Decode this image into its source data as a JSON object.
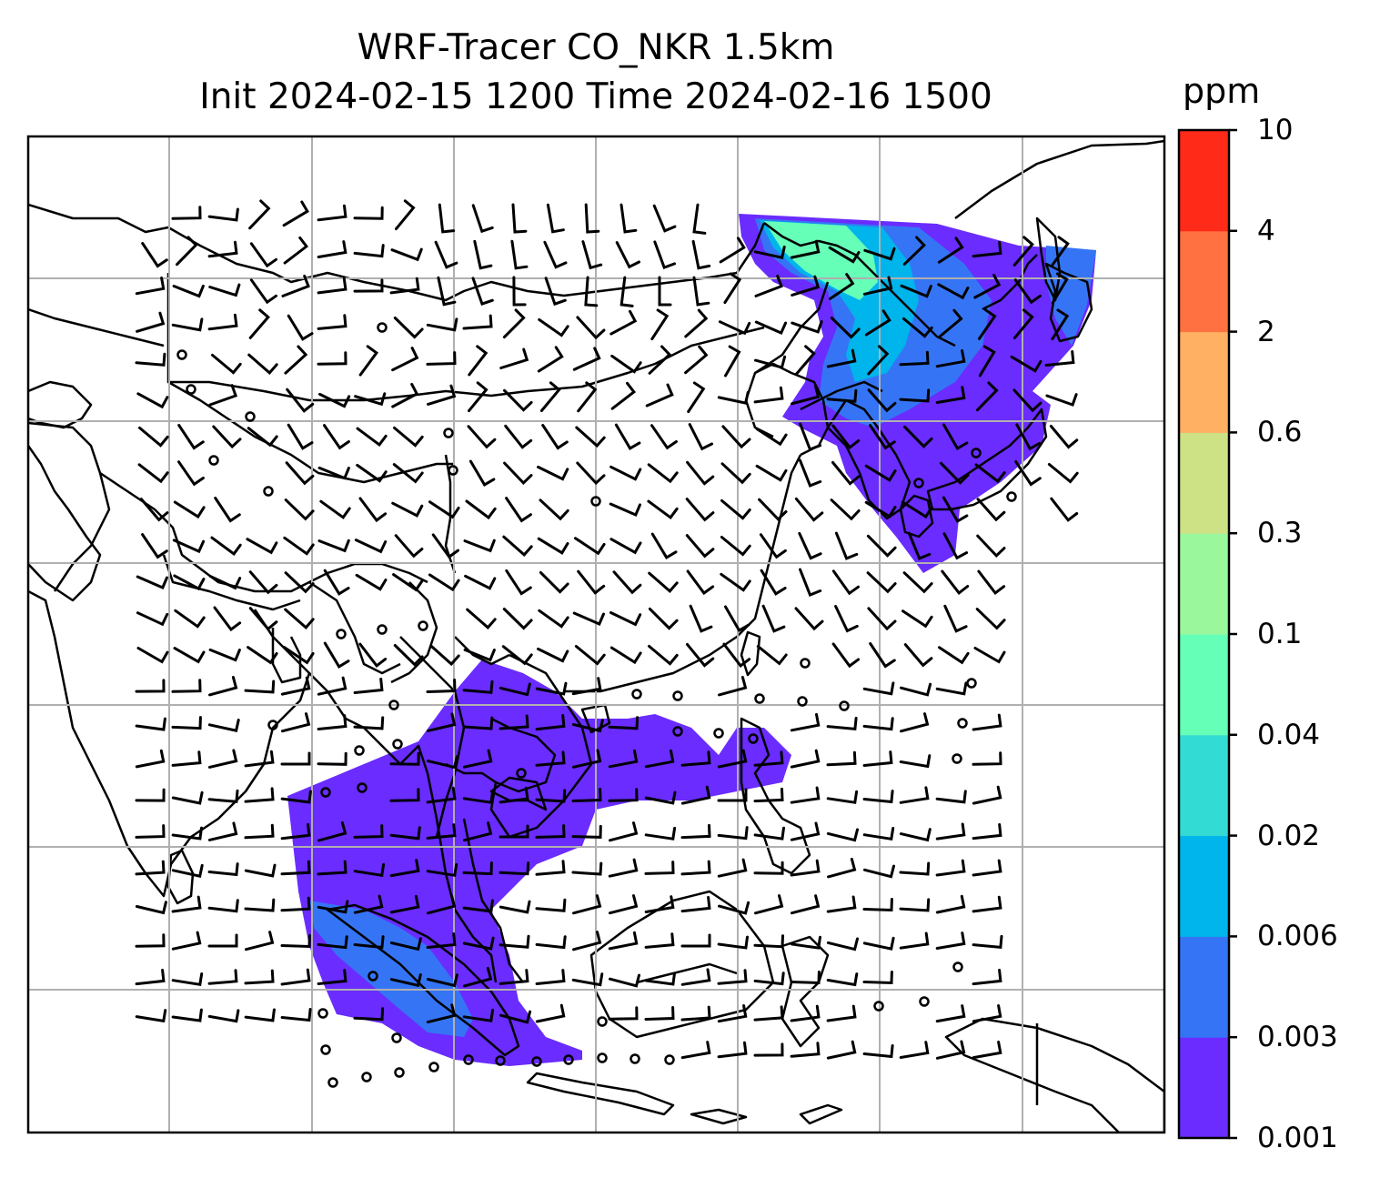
{
  "title": {
    "line1": "WRF-Tracer CO_NKR 1.5km",
    "line2": "Init 2024-02-15 1200 Time 2024-02-16 1500"
  },
  "colorbar": {
    "unit": "ppm",
    "levels": [
      "0.001",
      "0.003",
      "0.006",
      "0.02",
      "0.04",
      "0.1",
      "0.3",
      "0.6",
      "2",
      "4",
      "10"
    ],
    "colors": [
      "#6a2cff",
      "#3575f5",
      "#00b4ec",
      "#33dbd5",
      "#66ffb8",
      "#9af79c",
      "#cde185",
      "#ffb062",
      "#ff7140",
      "#ff2a18"
    ]
  },
  "map": {
    "grid": "on",
    "background": "#ffffff",
    "coastline_color": "#000000",
    "gridline_color": "#b0b0b0",
    "plume_colors": {
      "north_low": "#6a2cff",
      "north_mid": "#3575f5",
      "north_core": "#00b4ec",
      "north_high": "#66ffb8",
      "south_low": "#6a2cff",
      "south_mid": "#3575f5"
    }
  }
}
